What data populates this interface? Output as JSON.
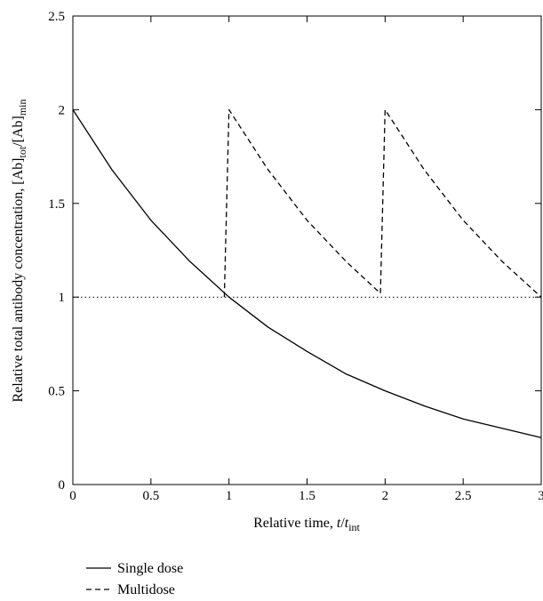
{
  "chart_data": {
    "type": "line",
    "title": "",
    "xlabel": {
      "prefix": "Relative time, ",
      "var": "t",
      "slash": "/",
      "var2": "t",
      "sub": "int"
    },
    "ylabel": {
      "prefix": "Relative total antibody concentration, [Ab]",
      "sub1": "tot",
      "mid": "/[Ab]",
      "sub2": "min"
    },
    "xlim": [
      0,
      3
    ],
    "ylim": [
      0,
      2.5
    ],
    "x_ticks": [
      0,
      0.5,
      1,
      1.5,
      2,
      2.5,
      3
    ],
    "x_tick_labels": [
      "0",
      "0.5",
      "1",
      "1.5",
      "2",
      "2.5",
      "3"
    ],
    "y_ticks": [
      0,
      0.5,
      1,
      1.5,
      2,
      2.5
    ],
    "y_tick_labels": [
      "0",
      "0.5",
      "1",
      "1.5",
      "2",
      "2.5"
    ],
    "grid": false,
    "legend_position": "below-left",
    "reference_line": {
      "y": 1,
      "style": "dotted"
    },
    "series": [
      {
        "name": "Single dose",
        "style": "solid",
        "x": [
          0,
          0.25,
          0.5,
          0.75,
          1,
          1.25,
          1.5,
          1.75,
          2,
          2.25,
          2.5,
          2.75,
          3
        ],
        "y": [
          2,
          1.68,
          1.41,
          1.19,
          1,
          0.84,
          0.71,
          0.59,
          0.5,
          0.42,
          0.35,
          0.3,
          0.25
        ]
      },
      {
        "name": "Multidose",
        "style": "dashed",
        "x": [
          0.97,
          1,
          1.25,
          1.5,
          1.75,
          1.97,
          2,
          2.25,
          2.5,
          2.75,
          3
        ],
        "y": [
          1,
          2,
          1.68,
          1.41,
          1.19,
          1.02,
          2,
          1.68,
          1.41,
          1.19,
          1
        ]
      }
    ]
  }
}
